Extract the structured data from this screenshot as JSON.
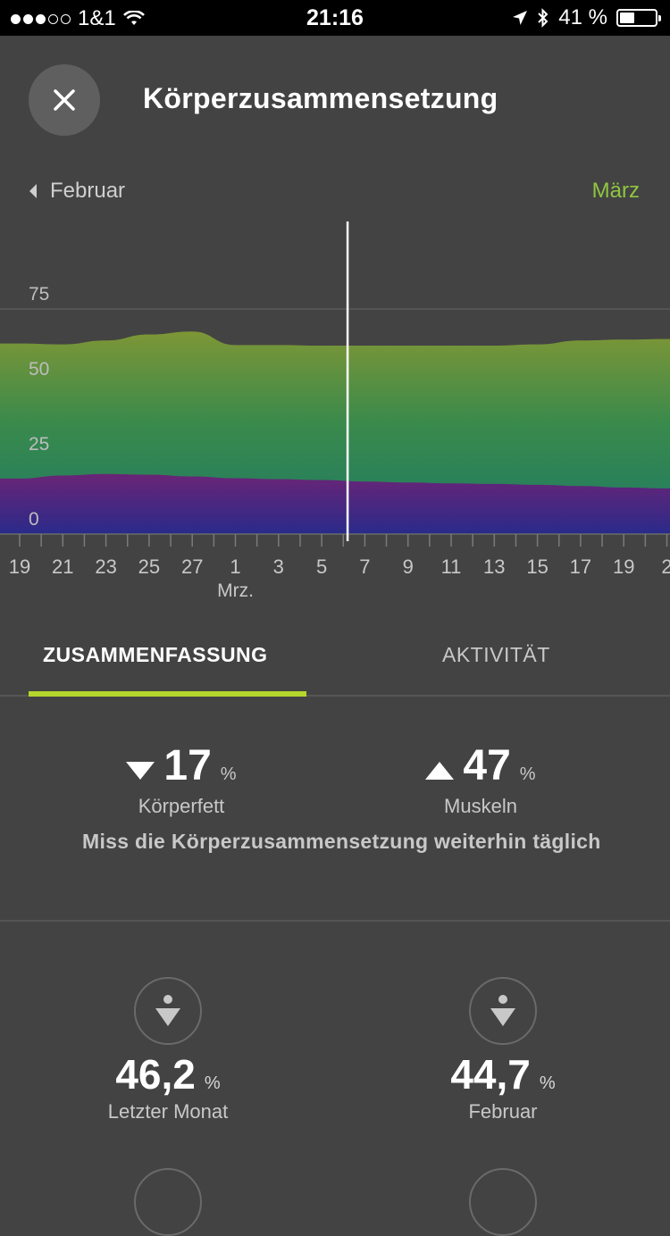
{
  "status_bar": {
    "carrier": "1&1",
    "time": "21:16",
    "battery": "41 %",
    "battery_level": 0.41
  },
  "header": {
    "title": "Körperzusammensetzung",
    "close_icon": "close-icon"
  },
  "month_nav": {
    "prev": "Februar",
    "current": "März"
  },
  "colors": {
    "accent_green": "#8fc63f",
    "tab_underline": "#b4d62d",
    "purple": "#5a2a7a",
    "blue": "#2a2a8a"
  },
  "chart_data": {
    "type": "area",
    "y_ticks": [
      "75",
      "50",
      "25",
      "0"
    ],
    "ylim": [
      0,
      75
    ],
    "x_ticks": [
      "19",
      "21",
      "23",
      "25",
      "27",
      "1",
      "3",
      "5",
      "7",
      "9",
      "11",
      "13",
      "15",
      "17",
      "19",
      "2"
    ],
    "x_sublabel": "Mrz.",
    "selected_index": 7.6,
    "series": [
      {
        "values": [
          18.5,
          19.5,
          20.0,
          19.8,
          19.2,
          18.6,
          18.3,
          18.0,
          17.5,
          17.2,
          16.9,
          16.7,
          16.4,
          16.0,
          15.5,
          15.2
        ]
      },
      {
        "values": [
          63.5,
          63.2,
          64.5,
          66.5,
          67.5,
          63.0,
          63.0,
          62.8,
          62.8,
          62.8,
          62.8,
          62.8,
          63.2,
          64.5,
          64.8,
          65.0
        ]
      }
    ]
  },
  "tabs": {
    "summary": "ZUSAMMENFASSUNG",
    "activity": "AKTIVITÄT"
  },
  "summary": {
    "fat": {
      "value": "17",
      "unit": "%",
      "label": "Körperfett",
      "trend": "down"
    },
    "muscle": {
      "value": "47",
      "unit": "%",
      "label": "Muskeln",
      "trend": "up"
    },
    "message": "Miss die Körperzusammensetzung weiterhin täglich"
  },
  "metrics": [
    {
      "value": "46,2",
      "unit": "%",
      "label": "Letzter Monat",
      "icon": "person-down-icon"
    },
    {
      "value": "44,7",
      "unit": "%",
      "label": "Februar",
      "icon": "person-down-icon"
    }
  ]
}
